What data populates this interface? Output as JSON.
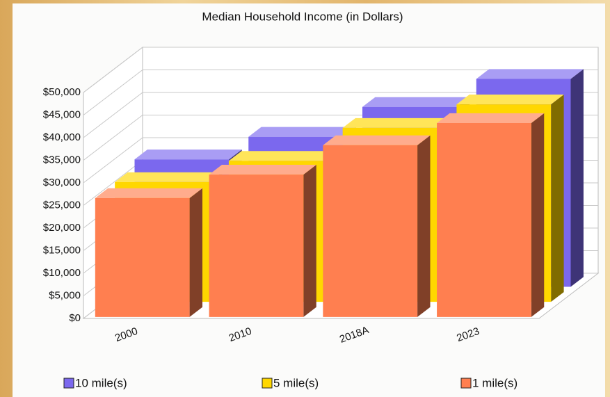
{
  "chart_data": {
    "type": "bar3d",
    "title": "Median Household Income (in Dollars)",
    "categories": [
      "2000",
      "2010",
      "2018A",
      "2023"
    ],
    "series": [
      {
        "name": "10 mile(s)",
        "color": "#7b68ee",
        "values": [
          28200,
          33200,
          39800,
          46000
        ]
      },
      {
        "name": "5 mile(s)",
        "color": "#ffd700",
        "values": [
          26500,
          31200,
          38500,
          43700
        ]
      },
      {
        "name": "1 mile(s)",
        "color": "#ff7f50",
        "values": [
          26300,
          31500,
          38000,
          42900
        ]
      }
    ],
    "ylim": [
      0,
      50000
    ],
    "yticks": [
      {
        "value": 0,
        "label": "$0"
      },
      {
        "value": 5000,
        "label": "$5,000"
      },
      {
        "value": 10000,
        "label": "$10,000"
      },
      {
        "value": 15000,
        "label": "$15,000"
      },
      {
        "value": 20000,
        "label": "$20,000"
      },
      {
        "value": 25000,
        "label": "$25,000"
      },
      {
        "value": 30000,
        "label": "$30,000"
      },
      {
        "value": 35000,
        "label": "$35,000"
      },
      {
        "value": 40000,
        "label": "$40,000"
      },
      {
        "value": 45000,
        "label": "$45,000"
      },
      {
        "value": 50000,
        "label": "$50,000"
      }
    ],
    "grid": true
  }
}
